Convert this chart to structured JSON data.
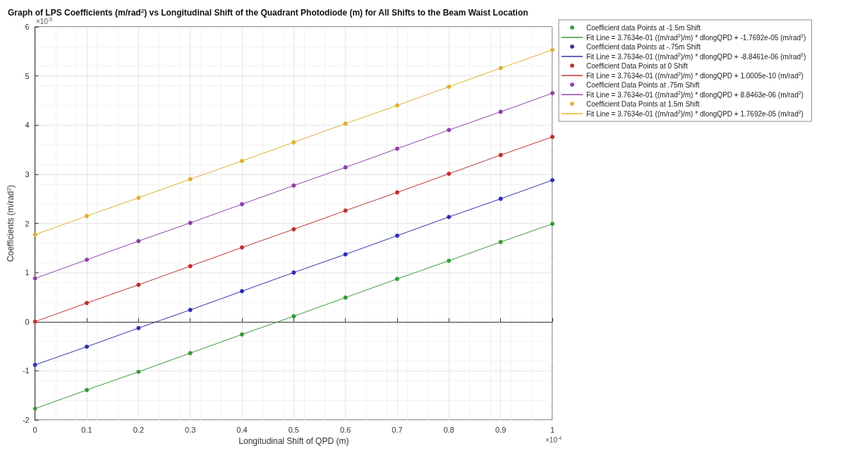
{
  "chart_data": {
    "type": "scatter",
    "title": "Graph of LPS Coefficients (m/rad$^{2}$) vs Longitudinal Shift of the Quadrant Photodiode (m) for All Shifts to the Beam Waist Location",
    "xlabel": "Longitudinal Shift of QPD (m)",
    "ylabel": "Coefficients (m/rad$^{2}$)",
    "annotations": [
      "×10$^{-5}$",
      "×10$^{-4}$"
    ],
    "x": [
      0,
      0.1,
      0.2,
      0.3,
      0.4,
      0.5,
      0.6,
      0.7,
      0.8,
      0.9,
      1
    ],
    "xlim": [
      0,
      1
    ],
    "xticks": [
      0,
      0.1,
      0.2,
      0.3,
      0.4,
      0.5,
      0.6,
      0.7,
      0.8,
      0.9,
      1
    ],
    "ylim": [
      -2,
      6
    ],
    "yticks": [
      -2,
      -1,
      0,
      1,
      2,
      3,
      4,
      5,
      6
    ],
    "grid": true,
    "legend": "right",
    "series": [
      {
        "name": "Coefficient data Points at -1.5m Shift",
        "marker": "circle",
        "color": "#3a9a3a",
        "values": [
          -1.77,
          -1.39,
          -1.02,
          -0.64,
          -0.26,
          0.11,
          0.49,
          0.87,
          1.24,
          1.62,
          1.99
        ]
      },
      {
        "name": "Fit Line = 3.7634e-01 ((m/rad$^{2}$)/m) * dlongQPD + -1.7692e-05 (m/rad$^{2}$)",
        "type": "line",
        "marker": "none",
        "line_style": "solid",
        "color": "#3a9a3a",
        "values": [
          -1.77,
          -1.39,
          -1.02,
          -0.64,
          -0.26,
          0.11,
          0.49,
          0.87,
          1.24,
          1.62,
          1.99
        ]
      },
      {
        "name": "Coefficient data Points at -.75m Shift",
        "marker": "circle",
        "color": "#3030b0",
        "values": [
          -0.88,
          -0.51,
          -0.13,
          0.24,
          0.62,
          1.0,
          1.37,
          1.75,
          2.13,
          2.5,
          2.88
        ]
      },
      {
        "name": "Fit Line = 3.7634e-01 ((m/rad$^{2}$)/m) * dlongQPD + -8.8461e-06 (m/rad$^{2}$)",
        "type": "line",
        "marker": "none",
        "line_style": "solid",
        "color": "#3030b0",
        "values": [
          -0.88,
          -0.51,
          -0.13,
          0.24,
          0.62,
          1.0,
          1.37,
          1.75,
          2.13,
          2.5,
          2.88
        ]
      },
      {
        "name": "Coefficient Data Points at 0 Shift",
        "marker": "circle",
        "color": "#c03030",
        "values": [
          0,
          0.38,
          0.75,
          1.13,
          1.51,
          1.88,
          2.26,
          2.63,
          3.01,
          3.39,
          3.76
        ]
      },
      {
        "name": "Fit Line = 3.7634e-01 ((m/rad$^{2}$)/m) * dlongQPD + 1.0005e-10 (m/rad$^{2}$)",
        "type": "line",
        "marker": "none",
        "line_style": "solid",
        "color": "#c03030",
        "values": [
          0,
          0.38,
          0.75,
          1.13,
          1.51,
          1.88,
          2.26,
          2.63,
          3.01,
          3.39,
          3.76
        ]
      },
      {
        "name": "Coefficient Data Points at .75m Shift",
        "marker": "circle",
        "color": "#9040a8",
        "values": [
          0.88,
          1.26,
          1.64,
          2.01,
          2.39,
          2.77,
          3.14,
          3.52,
          3.9,
          4.27,
          4.65
        ]
      },
      {
        "name": "Fit Line = 3.7634e-01 ((m/rad$^{2}$)/m) * dlongQPD + 8.8463e-06 (m/rad$^{2}$)",
        "type": "line",
        "marker": "none",
        "line_style": "solid",
        "color": "#9040a8",
        "values": [
          0.88,
          1.26,
          1.64,
          2.01,
          2.39,
          2.77,
          3.14,
          3.52,
          3.9,
          4.27,
          4.65
        ]
      },
      {
        "name": "Coefficient Data Points at 1.5m Shift",
        "marker": "circle",
        "color": "#e0b030",
        "values": [
          1.77,
          2.15,
          2.52,
          2.9,
          3.27,
          3.65,
          4.03,
          4.4,
          4.78,
          5.16,
          5.53
        ]
      },
      {
        "name": "Fit Line = 3.7634e-01 ((m/rad$^{2}$)/m) * dlongQPD + 1.7692e-05 (m/rad$^{2}$)",
        "type": "line",
        "marker": "none",
        "line_style": "solid",
        "color": "#e0b030",
        "values": [
          1.77,
          2.15,
          2.52,
          2.9,
          3.27,
          3.65,
          4.03,
          4.4,
          4.78,
          5.16,
          5.53
        ]
      }
    ]
  }
}
